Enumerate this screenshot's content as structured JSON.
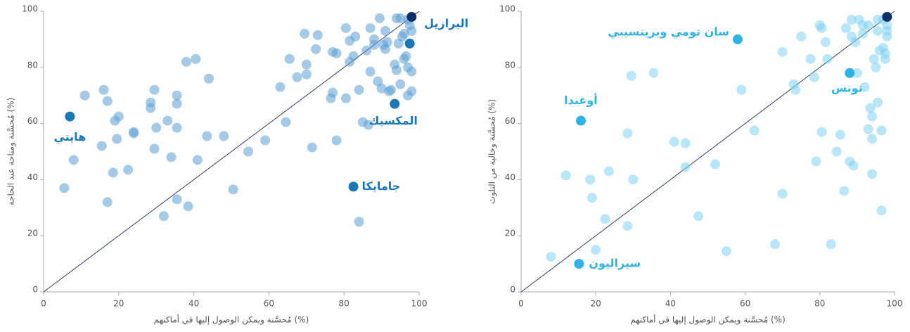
{
  "chart_data": [
    {
      "type": "scatter",
      "xlabel": "مُحسَّنة ويمكن الوصول إليها في أماكنهم (%)",
      "ylabel": "مُحسَّنة ومتاحة عند الحاجة (%)",
      "xlim": [
        0,
        100
      ],
      "ylim": [
        0,
        100
      ],
      "xticks": [
        0,
        20,
        40,
        60,
        80,
        100
      ],
      "yticks": [
        0,
        20,
        40,
        60,
        80,
        100
      ],
      "series": [
        {
          "color": "#5b9fd4",
          "x": [
            5.5,
            8,
            11,
            16,
            17,
            15.5,
            17,
            18.5,
            19,
            20,
            19.5,
            22.5,
            24,
            24,
            28.5,
            28.5,
            29.5,
            30,
            29.5,
            32,
            33,
            34,
            35.5,
            35.5,
            35.5,
            35.5,
            38,
            38.5,
            40.5,
            41,
            43.5,
            44,
            48,
            50.5,
            54.5,
            59,
            63,
            64.5,
            65.5,
            67.5,
            69.5,
            70,
            70,
            71.5,
            72.5,
            73,
            76.5,
            77,
            77,
            78,
            78,
            80.5,
            80.5,
            81.5,
            81.5,
            82.5,
            83,
            84,
            84,
            85,
            86,
            86.5,
            87,
            87,
            88,
            88,
            89,
            89.5,
            90,
            90.5,
            91,
            91,
            91.5,
            92,
            92.5,
            93.5,
            94,
            94,
            94.5,
            95,
            95,
            95.5,
            96,
            96,
            96.5,
            97,
            97,
            97,
            97.5,
            98,
            98,
            98
          ],
          "y": [
            37,
            47,
            70,
            72,
            68,
            52,
            32,
            42.5,
            61,
            62.5,
            54.5,
            43.5,
            57,
            56.5,
            67.5,
            65.5,
            72,
            58.5,
            51,
            27,
            61,
            48,
            70,
            67,
            58.5,
            33,
            82,
            30.5,
            83,
            47,
            55.5,
            76,
            55.5,
            36.5,
            50,
            54,
            73,
            60.5,
            83,
            76.5,
            92,
            81,
            77.5,
            51.5,
            86.5,
            91.5,
            69,
            71,
            85.5,
            54,
            85,
            94,
            69,
            82,
            89.5,
            84,
            91,
            72,
            25,
            60.5,
            86,
            59.5,
            94,
            78.5,
            90,
            88,
            75,
            97.5,
            72.5,
            88,
            86.5,
            93,
            89,
            71.5,
            72,
            81,
            97.5,
            79,
            88.5,
            74,
            97.5,
            91,
            83,
            92,
            84,
            97,
            70,
            80,
            95,
            78.5,
            93,
            71.5
          ]
        }
      ],
      "highlight_color": "#1a78b8",
      "annotations": [
        {
          "label": "هايتي",
          "x": 7,
          "y": 62.5
        },
        {
          "label": "البرازيل",
          "x": 97.5,
          "y": 88.5
        },
        {
          "label": "المكسيك",
          "x": 93.5,
          "y": 67
        },
        {
          "label": "جامايكا",
          "x": 82.5,
          "y": 37.5
        }
      ],
      "top_point": {
        "x": 98,
        "y": 98,
        "color": "#0b2f6b"
      }
    },
    {
      "type": "scatter",
      "xlabel": "مُحسَّنة ويمكن الوصول إليها في أماكنهم (%)",
      "ylabel": "مُحسَّنة وخالية من التلوث (%)",
      "xlim": [
        0,
        100
      ],
      "ylim": [
        0,
        100
      ],
      "xticks": [
        0,
        20,
        40,
        60,
        80,
        100
      ],
      "yticks": [
        0,
        20,
        40,
        60,
        80,
        100
      ],
      "series": [
        {
          "color": "#7fd2f2",
          "x": [
            8,
            12,
            18.5,
            19,
            20,
            22.5,
            23.5,
            28.5,
            28.5,
            29.5,
            30,
            35.5,
            41,
            44,
            44,
            47.5,
            52,
            55,
            59,
            62.5,
            68,
            70,
            70,
            73,
            73.5,
            75,
            77.5,
            78.5,
            79,
            80,
            80.5,
            80.5,
            81.5,
            82,
            83,
            84.5,
            85.5,
            86.5,
            87,
            88,
            88.5,
            88.5,
            89,
            89.5,
            90,
            90.5,
            91.5,
            91.5,
            92,
            93,
            93,
            93.5,
            94,
            94,
            94,
            94.5,
            95,
            95.5,
            95.5,
            95.5,
            96,
            96.5,
            96.5,
            97,
            97,
            97.5,
            97.5,
            98,
            98,
            98
          ],
          "y": [
            12.5,
            41.5,
            40,
            33.5,
            15,
            26,
            43,
            56.5,
            23.5,
            77,
            40,
            78,
            53.5,
            53,
            44.5,
            27,
            45.5,
            14.5,
            72,
            57.5,
            17,
            85.5,
            35,
            74,
            72,
            91,
            83,
            76.5,
            46.5,
            95,
            57,
            94,
            89,
            83,
            17,
            50,
            56,
            36,
            94,
            46.5,
            97,
            91,
            45,
            89,
            78,
            97,
            92,
            95,
            73,
            58,
            95,
            65.5,
            42,
            54.5,
            62.5,
            83,
            80,
            97,
            93,
            67.5,
            86,
            57.5,
            29,
            97,
            87,
            83,
            85,
            93,
            95,
            91
          ]
        }
      ],
      "highlight_color": "#2fb3e6",
      "annotations": [
        {
          "label": "سان تومي وبرينسيبي",
          "x": 58,
          "y": 90
        },
        {
          "label": "أوغندا",
          "x": 16,
          "y": 61
        },
        {
          "label": "تونس",
          "x": 88,
          "y": 78
        },
        {
          "label": "سيراليون",
          "x": 15.5,
          "y": 10
        }
      ],
      "top_point": {
        "x": 98,
        "y": 98,
        "color": "#0b2f6b"
      }
    }
  ]
}
